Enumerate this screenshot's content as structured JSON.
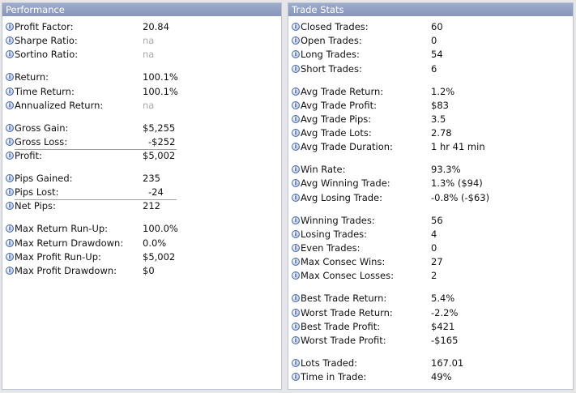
{
  "performance": {
    "title": "Performance",
    "rows": [
      {
        "label": "Profit Factor:",
        "value": "20.84"
      },
      {
        "label": "Sharpe Ratio:",
        "value": "na"
      },
      {
        "label": "Sortino Ratio:",
        "value": "na"
      },
      {
        "label": "Return:",
        "value": "100.1%"
      },
      {
        "label": "Time Return:",
        "value": "100.1%"
      },
      {
        "label": "Annualized Return:",
        "value": "na"
      },
      {
        "label": "Gross Gain:",
        "value": "$5,255"
      },
      {
        "label": "Gross Loss:",
        "value": "-$252"
      },
      {
        "label": "Profit:",
        "value": "$5,002"
      },
      {
        "label": "Pips Gained:",
        "value": "235"
      },
      {
        "label": "Pips Lost:",
        "value": "-24"
      },
      {
        "label": "Net Pips:",
        "value": "212"
      },
      {
        "label": "Max Return Run-Up:",
        "value": "100.0%"
      },
      {
        "label": "Max Return Drawdown:",
        "value": "0.0%"
      },
      {
        "label": "Max Profit Run-Up:",
        "value": "$5,002"
      },
      {
        "label": "Max Profit Drawdown:",
        "value": "$0"
      }
    ]
  },
  "trade_stats": {
    "title": "Trade Stats",
    "rows": [
      {
        "label": "Closed Trades:",
        "value": "60"
      },
      {
        "label": "Open Trades:",
        "value": "0"
      },
      {
        "label": "Long Trades:",
        "value": "54"
      },
      {
        "label": "Short Trades:",
        "value": "6"
      },
      {
        "label": "Avg Trade Return:",
        "value": "1.2%"
      },
      {
        "label": "Avg Trade Profit:",
        "value": "$83"
      },
      {
        "label": "Avg Trade Pips:",
        "value": "3.5"
      },
      {
        "label": "Avg Trade Lots:",
        "value": "2.78"
      },
      {
        "label": "Avg Trade Duration:",
        "value": "1 hr 41 min"
      },
      {
        "label": "Win Rate:",
        "value": "93.3%"
      },
      {
        "label": "Avg Winning Trade:",
        "value": "1.3% ($94)"
      },
      {
        "label": "Avg Losing Trade:",
        "value": "-0.8% (-$63)"
      },
      {
        "label": "Winning Trades:",
        "value": "56"
      },
      {
        "label": "Losing Trades:",
        "value": "4"
      },
      {
        "label": "Even Trades:",
        "value": "0"
      },
      {
        "label": "Max Consec Wins:",
        "value": "27"
      },
      {
        "label": "Max Consec Losses:",
        "value": "2"
      },
      {
        "label": "Best Trade Return:",
        "value": "5.4%"
      },
      {
        "label": "Worst Trade Return:",
        "value": "-2.2%"
      },
      {
        "label": "Best Trade Profit:",
        "value": "$421"
      },
      {
        "label": "Worst Trade Profit:",
        "value": "-$165"
      },
      {
        "label": "Lots Traded:",
        "value": "167.01"
      },
      {
        "label": "Time in Trade:",
        "value": "49%"
      }
    ]
  },
  "icons": {
    "info": "info-icon"
  },
  "colors": {
    "header": "#8f9dc2",
    "na_text": "#aaaaaa",
    "border": "#b9c3d6"
  }
}
